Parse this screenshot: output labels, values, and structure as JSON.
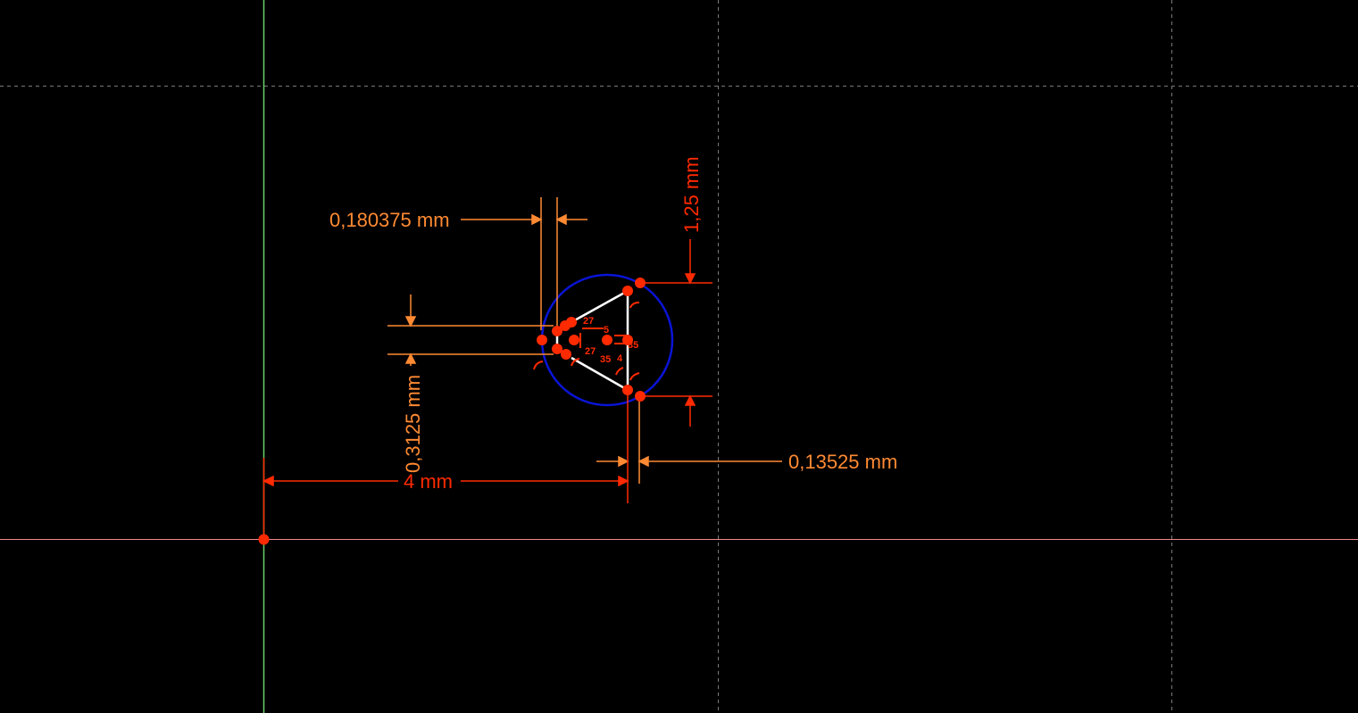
{
  "colors": {
    "background": "#000000",
    "grid": "#7a7a7a",
    "x_axis": "#f08a8a",
    "y_axis": "#6ccf6c",
    "dimension_orange": "#ff8a33",
    "dimension_red": "#ff2a00",
    "geometry_line": "#ffffff",
    "circle": "#0a14d6",
    "point": "#ff2a00"
  },
  "dimensions": {
    "width_top": "0,180375 mm",
    "height_right": "1,25 mm",
    "height_left": "0,3125 mm",
    "width_bottom_right": "0,13525 mm",
    "width_bottom": "4 mm"
  },
  "constraint_labels": {
    "c1": "27",
    "c2": "5",
    "c3": "27",
    "c4": "35",
    "c5": "35",
    "c6": "4"
  },
  "icons": {
    "constraint": "constraint-arc-icon",
    "vertex": "vertex-point-icon"
  }
}
